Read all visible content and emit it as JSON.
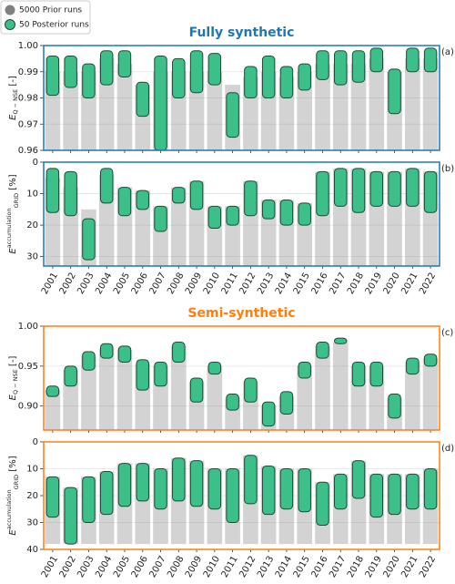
{
  "chart_data": [
    {
      "type": "range-strip",
      "title": "Fully synthetic",
      "panel_label": "(a)",
      "ylabel": {
        "main": "E",
        "sub": "Q − NSE",
        "unit": "[-]"
      },
      "legend": "upper left",
      "frame_color": "#1f77b4",
      "grid": true,
      "xticklabels": false,
      "categories": [
        "2001",
        "2002",
        "2003",
        "2004",
        "2005",
        "2006",
        "2007",
        "2008",
        "2009",
        "2010",
        "2011",
        "2012",
        "2013",
        "2014",
        "2015",
        "2016",
        "2017",
        "2018",
        "2019",
        "2020",
        "2021",
        "2022"
      ],
      "ylim": [
        0.96,
        1.0
      ],
      "yticks": [
        0.96,
        0.97,
        0.98,
        0.99,
        {
          "value": 1.0,
          "label": "1.00"
        }
      ],
      "series": [
        {
          "name": "5000 Prior runs",
          "color": "#808080",
          "values": [
            [
              0.96,
              0.99
            ],
            [
              0.96,
              0.99
            ],
            [
              0.96,
              0.99
            ],
            [
              0.96,
              0.995
            ],
            [
              0.96,
              0.993
            ],
            [
              0.96,
              0.985
            ],
            [
              0.96,
              0.99
            ],
            [
              0.96,
              0.99
            ],
            [
              0.96,
              0.99
            ],
            [
              0.96,
              0.99
            ],
            [
              0.96,
              0.985
            ],
            [
              0.96,
              0.988
            ],
            [
              0.96,
              0.99
            ],
            [
              0.96,
              0.988
            ],
            [
              0.96,
              0.99
            ],
            [
              0.96,
              0.993
            ],
            [
              0.96,
              0.993
            ],
            [
              0.96,
              0.993
            ],
            [
              0.96,
              0.995
            ],
            [
              0.96,
              0.99
            ],
            [
              0.96,
              0.995
            ],
            [
              0.96,
              0.995
            ]
          ]
        },
        {
          "name": "50 Posterior runs",
          "color": "#3dbf8a",
          "values": [
            [
              0.981,
              0.996
            ],
            [
              0.984,
              0.996
            ],
            [
              0.98,
              0.993
            ],
            [
              0.985,
              0.998
            ],
            [
              0.988,
              0.998
            ],
            [
              0.973,
              0.986
            ],
            [
              0.96,
              0.996
            ],
            [
              0.98,
              0.995
            ],
            [
              0.982,
              0.998
            ],
            [
              0.985,
              0.997
            ],
            [
              0.965,
              0.982
            ],
            [
              0.98,
              0.992
            ],
            [
              0.98,
              0.996
            ],
            [
              0.98,
              0.992
            ],
            [
              0.983,
              0.993
            ],
            [
              0.987,
              0.998
            ],
            [
              0.985,
              0.998
            ],
            [
              0.986,
              0.998
            ],
            [
              0.99,
              0.999
            ],
            [
              0.974,
              0.991
            ],
            [
              0.99,
              0.999
            ],
            [
              0.99,
              0.999
            ]
          ]
        }
      ]
    },
    {
      "type": "range-strip",
      "panel_label": "(b)",
      "ylabel": {
        "main": "E",
        "sup": "accumulation",
        "sub": "GRID",
        "unit": "[%]"
      },
      "frame_color": "#1f77b4",
      "grid": true,
      "xticklabels": true,
      "categories": [
        "2001",
        "2002",
        "2003",
        "2004",
        "2005",
        "2006",
        "2007",
        "2008",
        "2009",
        "2010",
        "2011",
        "2012",
        "2013",
        "2014",
        "2015",
        "2016",
        "2017",
        "2018",
        "2019",
        "2020",
        "2021",
        "2022"
      ],
      "ylim": [
        33,
        0
      ],
      "yticks": [
        0,
        10,
        20,
        30
      ],
      "series": [
        {
          "name": "5000 Prior runs",
          "color": "#808080",
          "values": [
            [
              5,
              33
            ],
            [
              8,
              33
            ],
            [
              15,
              33
            ],
            [
              4,
              33
            ],
            [
              8,
              33
            ],
            [
              9,
              33
            ],
            [
              14,
              33
            ],
            [
              8,
              33
            ],
            [
              6,
              33
            ],
            [
              14,
              33
            ],
            [
              14,
              33
            ],
            [
              6,
              33
            ],
            [
              12,
              33
            ],
            [
              12,
              33
            ],
            [
              13,
              33
            ],
            [
              3,
              33
            ],
            [
              2,
              33
            ],
            [
              2,
              33
            ],
            [
              3,
              33
            ],
            [
              3,
              33
            ],
            [
              2,
              33
            ],
            [
              3,
              33
            ]
          ]
        },
        {
          "name": "50 Posterior runs",
          "color": "#3dbf8a",
          "values": [
            [
              2,
              16
            ],
            [
              3,
              17
            ],
            [
              18,
              31
            ],
            [
              2,
              13
            ],
            [
              8,
              17
            ],
            [
              9,
              15
            ],
            [
              14,
              22
            ],
            [
              8,
              13
            ],
            [
              6,
              15
            ],
            [
              14,
              21
            ],
            [
              14,
              20
            ],
            [
              6,
              17
            ],
            [
              12,
              18
            ],
            [
              12,
              20
            ],
            [
              13,
              20
            ],
            [
              3,
              17
            ],
            [
              2,
              14
            ],
            [
              2,
              16
            ],
            [
              3,
              14
            ],
            [
              3,
              14
            ],
            [
              2,
              14
            ],
            [
              3,
              16
            ]
          ]
        }
      ]
    },
    {
      "type": "range-strip",
      "title": "Semi-synthetic",
      "panel_label": "(c)",
      "ylabel": {
        "main": "E",
        "sub": "Q − NSE",
        "unit": "[-]"
      },
      "frame_color": "#ff7f0e",
      "grid": true,
      "xticklabels": false,
      "categories": [
        "2001",
        "2002",
        "2003",
        "2004",
        "2005",
        "2006",
        "2007",
        "2008",
        "2009",
        "2010",
        "2011",
        "2012",
        "2013",
        "2014",
        "2015",
        "2016",
        "2017",
        "2018",
        "2019",
        "2020",
        "2021",
        "2022"
      ],
      "ylim": [
        0.87,
        1.0
      ],
      "yticks": [
        {
          "value": 0.9,
          "label": "0.90"
        },
        0.95,
        {
          "value": 1.0,
          "label": "1.00"
        }
      ],
      "series": [
        {
          "name": "5000 Prior runs",
          "color": "#808080",
          "values": [
            [
              0.87,
              0.92
            ],
            [
              0.87,
              0.945
            ],
            [
              0.87,
              0.962
            ],
            [
              0.87,
              0.972
            ],
            [
              0.87,
              0.97
            ],
            [
              0.87,
              0.952
            ],
            [
              0.87,
              0.95
            ],
            [
              0.87,
              0.975
            ],
            [
              0.87,
              0.93
            ],
            [
              0.87,
              0.95
            ],
            [
              0.87,
              0.91
            ],
            [
              0.87,
              0.93
            ],
            [
              0.87,
              0.9
            ],
            [
              0.87,
              0.912
            ],
            [
              0.87,
              0.95
            ],
            [
              0.87,
              0.975
            ],
            [
              0.87,
              0.98
            ],
            [
              0.87,
              0.95
            ],
            [
              0.87,
              0.95
            ],
            [
              0.87,
              0.91
            ],
            [
              0.87,
              0.955
            ],
            [
              0.87,
              0.96
            ]
          ]
        },
        {
          "name": "50 Posterior runs",
          "color": "#3dbf8a",
          "values": [
            [
              0.912,
              0.925
            ],
            [
              0.925,
              0.95
            ],
            [
              0.945,
              0.968
            ],
            [
              0.96,
              0.978
            ],
            [
              0.955,
              0.975
            ],
            [
              0.92,
              0.958
            ],
            [
              0.925,
              0.955
            ],
            [
              0.955,
              0.98
            ],
            [
              0.905,
              0.935
            ],
            [
              0.94,
              0.955
            ],
            [
              0.895,
              0.915
            ],
            [
              0.905,
              0.935
            ],
            [
              0.875,
              0.905
            ],
            [
              0.89,
              0.918
            ],
            [
              0.935,
              0.955
            ],
            [
              0.96,
              0.98
            ],
            [
              0.978,
              0.985
            ],
            [
              0.925,
              0.955
            ],
            [
              0.925,
              0.955
            ],
            [
              0.885,
              0.915
            ],
            [
              0.94,
              0.96
            ],
            [
              0.95,
              0.965
            ]
          ]
        }
      ]
    },
    {
      "type": "range-strip",
      "panel_label": "(d)",
      "ylabel": {
        "main": "E",
        "sup": "accumulation",
        "sub": "GRID",
        "unit": "[%]"
      },
      "frame_color": "#ff7f0e",
      "grid": true,
      "xticklabels": true,
      "categories": [
        "2001",
        "2002",
        "2003",
        "2004",
        "2005",
        "2006",
        "2007",
        "2008",
        "2009",
        "2010",
        "2011",
        "2012",
        "2013",
        "2014",
        "2015",
        "2016",
        "2017",
        "2018",
        "2019",
        "2020",
        "2021",
        "2022"
      ],
      "ylim": [
        40,
        0
      ],
      "yticks": [
        0,
        10,
        20,
        30,
        40
      ],
      "series": [
        {
          "name": "5000 Prior runs",
          "color": "#808080",
          "values": [
            [
              13,
              38
            ],
            [
              17,
              38
            ],
            [
              13,
              38
            ],
            [
              11,
              38
            ],
            [
              8,
              38
            ],
            [
              8,
              38
            ],
            [
              10,
              38
            ],
            [
              6,
              38
            ],
            [
              7,
              38
            ],
            [
              10,
              38
            ],
            [
              10,
              38
            ],
            [
              5,
              38
            ],
            [
              9,
              38
            ],
            [
              10,
              38
            ],
            [
              10,
              38
            ],
            [
              15,
              38
            ],
            [
              12,
              38
            ],
            [
              7,
              38
            ],
            [
              12,
              38
            ],
            [
              12,
              38
            ],
            [
              12,
              38
            ],
            [
              10,
              38
            ]
          ]
        },
        {
          "name": "50 Posterior runs",
          "color": "#3dbf8a",
          "values": [
            [
              13,
              28
            ],
            [
              17,
              38
            ],
            [
              13,
              30
            ],
            [
              11,
              27
            ],
            [
              8,
              24
            ],
            [
              8,
              22
            ],
            [
              10,
              25
            ],
            [
              6,
              22
            ],
            [
              7,
              24
            ],
            [
              10,
              25
            ],
            [
              10,
              30
            ],
            [
              5,
              23
            ],
            [
              9,
              27
            ],
            [
              10,
              25
            ],
            [
              10,
              26
            ],
            [
              15,
              31
            ],
            [
              12,
              25
            ],
            [
              7,
              21
            ],
            [
              12,
              28
            ],
            [
              12,
              27
            ],
            [
              12,
              25
            ],
            [
              10,
              25
            ]
          ]
        }
      ]
    }
  ]
}
